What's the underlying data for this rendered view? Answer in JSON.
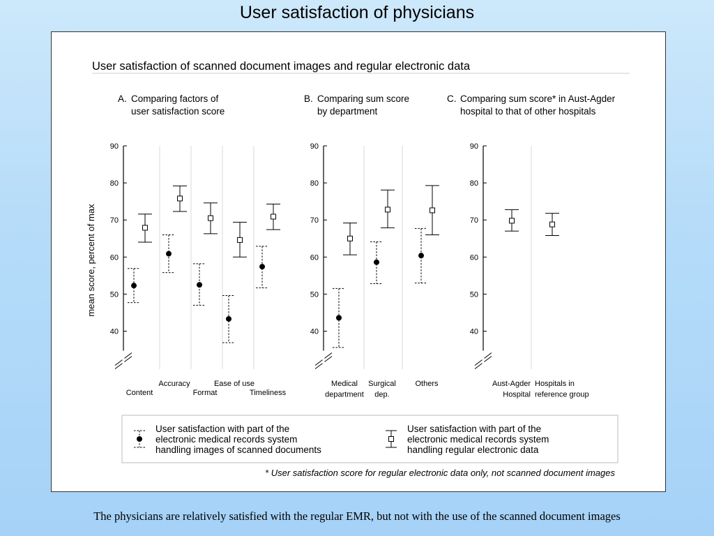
{
  "slide": {
    "title": "User satisfaction of physicians",
    "caption": "The physicians are relatively satisfied with the regular EMR, but not with the use of the scanned document images"
  },
  "figure": {
    "title": "User satisfaction of scanned document images and regular electronic data",
    "ylabel": "mean score, percent of max",
    "footnote": "* User satisfaction score for regular electronic data only, not scanned document images"
  },
  "legend": {
    "scanned": [
      "User satisfaction with part of the",
      "electronic medical records system",
      "handling images of scanned documents"
    ],
    "regular": [
      "User satisfaction with part of the",
      "electronic medical records system",
      "handling regular electronic data"
    ]
  },
  "colors": {
    "marker": "#000000",
    "axis": "#000000",
    "separator": "#d8d8d8",
    "background_gradient_top": "#cde8fb",
    "background_gradient_bottom": "#a6d2f8"
  },
  "chart_data": [
    {
      "type": "scatter",
      "panel_letter": "A.",
      "title_lines": [
        "Comparing factors of",
        "user satisfaction score"
      ],
      "categories": [
        {
          "label": [
            "Content"
          ],
          "row": "low"
        },
        {
          "label": [
            "Accuracy"
          ],
          "row": "high"
        },
        {
          "label": [
            "Format"
          ],
          "row": "low"
        },
        {
          "label": [
            "Ease of use"
          ],
          "row": "high"
        },
        {
          "label": [
            "Timeliness"
          ],
          "row": "low"
        }
      ],
      "yticks": [
        40,
        50,
        60,
        70,
        80,
        90
      ],
      "ylim": [
        30,
        90
      ],
      "axis_break": true,
      "series": [
        {
          "key": "scanned",
          "marker": "filled-circle",
          "line": "dashed",
          "values": [
            52.3,
            60.9,
            52.5,
            43.3,
            57.4
          ],
          "lower": [
            47.7,
            55.8,
            47.0,
            36.9,
            51.7
          ],
          "upper": [
            56.9,
            66.0,
            58.2,
            49.6,
            62.9
          ]
        },
        {
          "key": "regular",
          "marker": "open-square",
          "line": "solid",
          "values": [
            67.9,
            75.8,
            70.5,
            64.6,
            70.9
          ],
          "lower": [
            64.0,
            72.3,
            66.3,
            60.0,
            67.4
          ],
          "upper": [
            71.6,
            79.2,
            74.6,
            69.4,
            74.3
          ]
        }
      ]
    },
    {
      "type": "scatter",
      "panel_letter": "B.",
      "title_lines": [
        "Comparing sum score",
        "by department"
      ],
      "categories": [
        {
          "label": [
            "Medical",
            "department"
          ],
          "row": "high"
        },
        {
          "label": [
            "Surgical",
            "dep."
          ],
          "row": "high"
        },
        {
          "label": [
            "Others"
          ],
          "row": "high"
        }
      ],
      "yticks": [
        40,
        50,
        60,
        70,
        80,
        90
      ],
      "ylim": [
        30,
        90
      ],
      "axis_break": true,
      "series": [
        {
          "key": "scanned",
          "marker": "filled-circle",
          "line": "dashed",
          "values": [
            43.6,
            58.6,
            60.4
          ],
          "lower": [
            35.6,
            52.8,
            53.0
          ],
          "upper": [
            51.5,
            64.1,
            67.7
          ]
        },
        {
          "key": "regular",
          "marker": "open-square",
          "line": "solid",
          "values": [
            65.0,
            72.8,
            72.6
          ],
          "lower": [
            60.6,
            67.9,
            66.0
          ],
          "upper": [
            69.2,
            78.1,
            79.3
          ]
        }
      ]
    },
    {
      "type": "scatter",
      "panel_letter": "C.",
      "title_lines": [
        "Comparing sum score* in Aust-Agder",
        "hospital to that of other hospitals"
      ],
      "categories": [
        {
          "label": [
            "Aust-Agder",
            "Hospital"
          ],
          "row": "high",
          "align": "end"
        },
        {
          "label": [
            "Hospitals in",
            "reference group"
          ],
          "row": "high",
          "align": "start"
        }
      ],
      "yticks": [
        40,
        50,
        60,
        70,
        80,
        90
      ],
      "ylim": [
        30,
        90
      ],
      "axis_break": true,
      "series": [
        {
          "key": "regular",
          "marker": "open-square",
          "line": "solid",
          "values": [
            69.8,
            68.8
          ],
          "lower": [
            67.0,
            65.8
          ],
          "upper": [
            72.8,
            71.8
          ]
        }
      ]
    }
  ]
}
